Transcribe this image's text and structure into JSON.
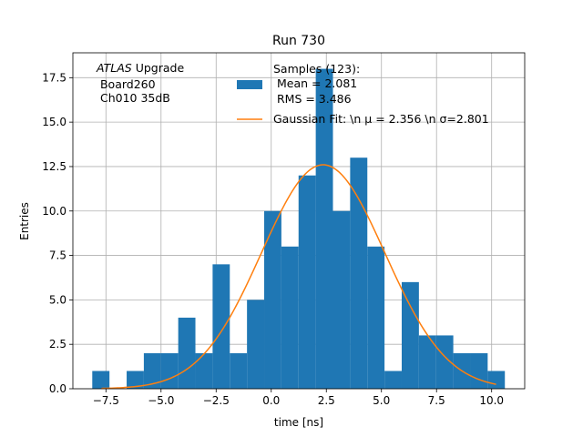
{
  "chart_data": {
    "type": "bar",
    "title": "Run 730",
    "xlabel": "time [ns]",
    "ylabel": "Entries",
    "xlim": [
      -9.0,
      11.5
    ],
    "ylim": [
      0,
      18.9
    ],
    "grid": true,
    "xticks": [
      -7.5,
      -5.0,
      -2.5,
      0.0,
      2.5,
      5.0,
      7.5,
      10.0
    ],
    "xtick_labels": [
      "−7.5",
      "−5.0",
      "−2.5",
      "0.0",
      "2.5",
      "5.0",
      "7.5",
      "10.0"
    ],
    "yticks": [
      0.0,
      2.5,
      5.0,
      7.5,
      10.0,
      12.5,
      15.0,
      17.5
    ],
    "ytick_labels": [
      "0.0",
      "2.5",
      "5.0",
      "7.5",
      "10.0",
      "12.5",
      "15.0",
      "17.5"
    ],
    "bin_edges": [
      -8.12,
      -7.34,
      -6.56,
      -5.78,
      -5.0,
      -4.22,
      -3.44,
      -2.66,
      -1.88,
      -1.1,
      -0.32,
      0.46,
      1.24,
      2.02,
      2.8,
      3.58,
      4.36,
      5.14,
      5.92,
      6.7,
      7.48,
      8.26,
      9.04,
      9.82,
      10.6
    ],
    "counts": [
      1,
      0,
      1,
      2,
      2,
      4,
      2,
      7,
      2,
      5,
      10,
      8,
      12,
      18,
      10,
      13,
      8,
      1,
      6,
      3,
      3,
      2,
      2,
      1
    ],
    "bar_color": "#1f77b4",
    "fit": {
      "amplitude": 12.6,
      "mu": 2.356,
      "sigma": 2.801,
      "x_range": [
        -7.7,
        10.2
      ],
      "color": "#ff7f0e"
    },
    "annotation": {
      "italic": "ATLAS",
      "rest": " Upgrade",
      "line2": " Board260",
      "line3": " Ch010 35dB"
    },
    "legend": {
      "placement": "top-right",
      "hist_label_lines": [
        "Samples (123):",
        " Mean = 2.081",
        " RMS = 3.486"
      ],
      "fit_label": "Gaussian Fit: \\n μ = 2.356 \\n σ=2.801"
    }
  }
}
